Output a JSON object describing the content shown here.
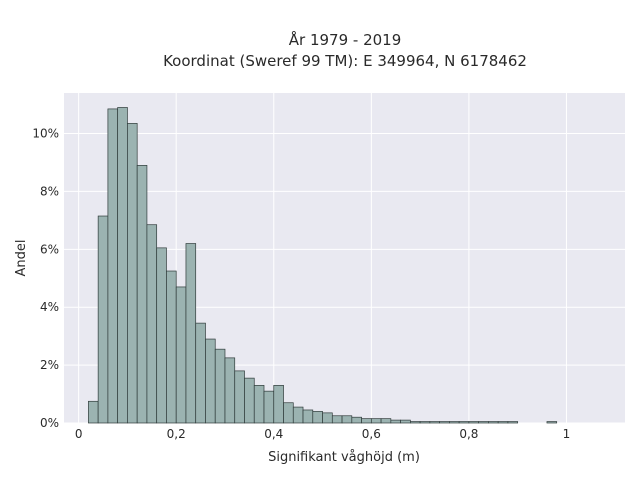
{
  "chart_data": {
    "type": "bar",
    "title": "År 1979 - 2019",
    "subtitle": "Koordinat (Sweref 99 TM): E 349964, N 6178462",
    "xlabel": "Signifikant våghöjd (m)",
    "ylabel": "Andel",
    "xlim": [
      -0.03,
      1.12
    ],
    "ylim": [
      0,
      11.4
    ],
    "grid": true,
    "bar_color": "#9bb3b1",
    "edge_color": "#2f3b3a",
    "background_color": "#e9e9f1",
    "x_ticks": [
      0,
      0.2,
      0.4,
      0.6,
      0.8,
      1
    ],
    "x_tick_labels": [
      "0",
      "0,2",
      "0,4",
      "0,6",
      "0,8",
      "1"
    ],
    "y_ticks": [
      0,
      2,
      4,
      6,
      8,
      10
    ],
    "y_tick_labels": [
      "0%",
      "2%",
      "4%",
      "6%",
      "8%",
      "10%"
    ],
    "bin_width": 0.02,
    "bin_starts": [
      0.02,
      0.04,
      0.06,
      0.08,
      0.1,
      0.12,
      0.14,
      0.16,
      0.18,
      0.2,
      0.22,
      0.24,
      0.26,
      0.28,
      0.3,
      0.32,
      0.34,
      0.36,
      0.38,
      0.4,
      0.42,
      0.44,
      0.46,
      0.48,
      0.5,
      0.52,
      0.54,
      0.56,
      0.58,
      0.6,
      0.62,
      0.64,
      0.66,
      0.68,
      0.7,
      0.72,
      0.74,
      0.76,
      0.78,
      0.8,
      0.82,
      0.84,
      0.86,
      0.88,
      0.96
    ],
    "values": [
      0.75,
      7.15,
      10.85,
      10.9,
      10.35,
      8.9,
      6.85,
      6.05,
      5.25,
      4.7,
      6.2,
      3.45,
      2.9,
      2.55,
      2.25,
      1.8,
      1.55,
      1.3,
      1.1,
      1.3,
      0.7,
      0.55,
      0.45,
      0.4,
      0.35,
      0.25,
      0.25,
      0.2,
      0.15,
      0.15,
      0.15,
      0.1,
      0.1,
      0.05,
      0.05,
      0.05,
      0.05,
      0.05,
      0.05,
      0.05,
      0.05,
      0.05,
      0.05,
      0.05,
      0.05
    ]
  }
}
